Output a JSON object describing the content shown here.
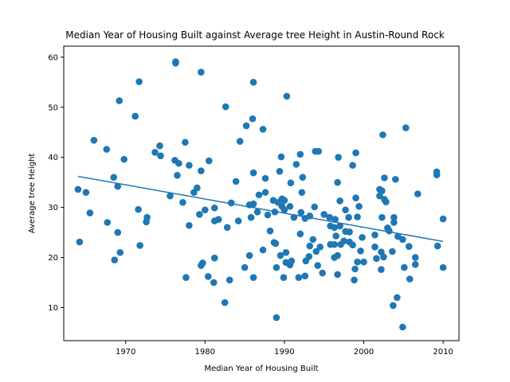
{
  "chart_data": {
    "type": "scatter",
    "title": "Median Year of Housing Built against Average tree Height in Austin-Round Rock",
    "xlabel": "Median Year of Housing Built",
    "ylabel": "Average tree Height",
    "xlim": [
      1962.2,
      2012.0
    ],
    "ylim": [
      3.4,
      62.2
    ],
    "xticks": [
      1970,
      1980,
      1990,
      2000,
      2010
    ],
    "yticks": [
      10,
      20,
      30,
      40,
      50,
      60
    ],
    "grid": false,
    "colors": {
      "points": "#1f77b4",
      "trendline": "#1f77b4"
    },
    "trendline": {
      "x": [
        1964,
        2010
      ],
      "y": [
        36.2,
        23.2
      ]
    },
    "points": [
      [
        1964.0,
        33.6
      ],
      [
        1964.2,
        23.1
      ],
      [
        1965.0,
        33.0
      ],
      [
        1965.5,
        28.9
      ],
      [
        1966.0,
        43.4
      ],
      [
        1967.6,
        41.6
      ],
      [
        1967.7,
        27.0
      ],
      [
        1968.5,
        36.0
      ],
      [
        1968.6,
        19.5
      ],
      [
        1969.0,
        34.2
      ],
      [
        1969.0,
        25.0
      ],
      [
        1969.2,
        51.3
      ],
      [
        1969.3,
        21.0
      ],
      [
        1969.8,
        39.6
      ],
      [
        1971.2,
        48.2
      ],
      [
        1971.7,
        55.1
      ],
      [
        1971.8,
        22.4
      ],
      [
        1971.6,
        29.6
      ],
      [
        1972.6,
        27.1
      ],
      [
        1972.7,
        28.0
      ],
      [
        1973.7,
        41.0
      ],
      [
        1974.3,
        42.3
      ],
      [
        1974.4,
        40.3
      ],
      [
        1975.6,
        32.3
      ],
      [
        1976.2,
        39.4
      ],
      [
        1976.3,
        58.8
      ],
      [
        1976.3,
        59.1
      ],
      [
        1976.5,
        36.4
      ],
      [
        1976.7,
        38.8
      ],
      [
        1977.2,
        31.0
      ],
      [
        1977.5,
        43.0
      ],
      [
        1977.6,
        16.0
      ],
      [
        1978.0,
        38.4
      ],
      [
        1978.0,
        26.4
      ],
      [
        1978.6,
        33.0
      ],
      [
        1979.0,
        33.9
      ],
      [
        1979.3,
        28.6
      ],
      [
        1979.5,
        37.3
      ],
      [
        1979.5,
        57.0
      ],
      [
        1979.5,
        18.4
      ],
      [
        1979.7,
        18.9
      ],
      [
        1980.0,
        29.5
      ],
      [
        1980.4,
        16.2
      ],
      [
        1980.5,
        39.3
      ],
      [
        1981.1,
        15.0
      ],
      [
        1981.2,
        27.3
      ],
      [
        1981.2,
        29.9
      ],
      [
        1981.2,
        19.9
      ],
      [
        1981.7,
        27.6
      ],
      [
        1982.5,
        11.0
      ],
      [
        1982.6,
        50.1
      ],
      [
        1982.8,
        26.0
      ],
      [
        1983.1,
        15.5
      ],
      [
        1983.3,
        30.9
      ],
      [
        1983.9,
        35.2
      ],
      [
        1984.2,
        27.3
      ],
      [
        1984.4,
        43.2
      ],
      [
        1985.0,
        18.0
      ],
      [
        1985.2,
        46.3
      ],
      [
        1985.6,
        30.5
      ],
      [
        1985.6,
        20.4
      ],
      [
        1985.8,
        28.0
      ],
      [
        1986.0,
        47.7
      ],
      [
        1986.1,
        55.0
      ],
      [
        1986.1,
        36.9
      ],
      [
        1986.1,
        30.7
      ],
      [
        1986.1,
        16.0
      ],
      [
        1986.6,
        29.1
      ],
      [
        1986.8,
        32.5
      ],
      [
        1987.3,
        45.6
      ],
      [
        1987.3,
        21.5
      ],
      [
        1987.6,
        33.0
      ],
      [
        1987.6,
        35.8
      ],
      [
        1987.9,
        28.5
      ],
      [
        1988.2,
        25.3
      ],
      [
        1988.6,
        31.4
      ],
      [
        1988.7,
        23.0
      ],
      [
        1988.8,
        29.1
      ],
      [
        1988.9,
        22.8
      ],
      [
        1989.0,
        8.0
      ],
      [
        1989.0,
        18.0
      ],
      [
        1989.2,
        31.0
      ],
      [
        1989.4,
        37.2
      ],
      [
        1989.5,
        20.4
      ],
      [
        1989.6,
        40.1
      ],
      [
        1989.7,
        31.7
      ],
      [
        1989.7,
        30.2
      ],
      [
        1989.9,
        16.0
      ],
      [
        1990.0,
        29.5
      ],
      [
        1990.0,
        31.4
      ],
      [
        1990.2,
        19.0
      ],
      [
        1990.2,
        21.0
      ],
      [
        1990.3,
        52.2
      ],
      [
        1990.7,
        18.5
      ],
      [
        1990.7,
        30.2
      ],
      [
        1990.8,
        34.9
      ],
      [
        1990.9,
        19.3
      ],
      [
        1991.2,
        28.0
      ],
      [
        1991.5,
        38.6
      ],
      [
        1991.8,
        16.0
      ],
      [
        1992.0,
        24.7
      ],
      [
        1992.0,
        40.6
      ],
      [
        1992.1,
        29.0
      ],
      [
        1992.2,
        33.0
      ],
      [
        1992.3,
        36.0
      ],
      [
        1992.6,
        16.3
      ],
      [
        1992.6,
        27.8
      ],
      [
        1992.7,
        19.3
      ],
      [
        1993.1,
        20.2
      ],
      [
        1993.2,
        28.3
      ],
      [
        1993.2,
        22.3
      ],
      [
        1993.6,
        23.6
      ],
      [
        1993.8,
        30.1
      ],
      [
        1993.9,
        41.2
      ],
      [
        1994.0,
        21.2
      ],
      [
        1994.3,
        41.2
      ],
      [
        1994.2,
        18.4
      ],
      [
        1994.5,
        22.1
      ],
      [
        1994.8,
        16.9
      ],
      [
        1995.0,
        28.6
      ],
      [
        1995.7,
        28.0
      ],
      [
        1995.8,
        26.3
      ],
      [
        1995.8,
        22.6
      ],
      [
        1996.3,
        26.0
      ],
      [
        1996.3,
        22.6
      ],
      [
        1996.3,
        20.0
      ],
      [
        1996.4,
        27.6
      ],
      [
        1996.5,
        24.3
      ],
      [
        1996.7,
        16.6
      ],
      [
        1996.7,
        20.4
      ],
      [
        1996.7,
        35.0
      ],
      [
        1996.8,
        40.0
      ],
      [
        1997.0,
        26.3
      ],
      [
        1997.0,
        31.3
      ],
      [
        1997.1,
        22.6
      ],
      [
        1997.5,
        23.3
      ],
      [
        1997.7,
        25.2
      ],
      [
        1997.7,
        29.5
      ],
      [
        1998.1,
        28.0
      ],
      [
        1998.2,
        25.1
      ],
      [
        1998.2,
        23.1
      ],
      [
        1998.6,
        38.4
      ],
      [
        1998.6,
        22.5
      ],
      [
        1998.8,
        15.5
      ],
      [
        1998.9,
        17.7
      ],
      [
        1999.0,
        31.9
      ],
      [
        1999.0,
        40.9
      ],
      [
        1999.2,
        19.1
      ],
      [
        1999.2,
        28.1
      ],
      [
        1999.4,
        30.2
      ],
      [
        1999.6,
        21.3
      ],
      [
        1999.8,
        24.0
      ],
      [
        2000.0,
        19.1
      ],
      [
        2001.4,
        24.5
      ],
      [
        2001.4,
        22.1
      ],
      [
        2001.6,
        19.8
      ],
      [
        2002.0,
        33.6
      ],
      [
        2002.0,
        32.3
      ],
      [
        2002.2,
        21.1
      ],
      [
        2002.2,
        17.6
      ],
      [
        2002.3,
        33.3
      ],
      [
        2002.3,
        28.0
      ],
      [
        2002.4,
        44.5
      ],
      [
        2002.5,
        20.1
      ],
      [
        2002.6,
        31.6
      ],
      [
        2002.6,
        35.9
      ],
      [
        2002.8,
        31.1
      ],
      [
        2003.0,
        25.9
      ],
      [
        2003.2,
        25.3
      ],
      [
        2003.6,
        21.2
      ],
      [
        2003.7,
        10.4
      ],
      [
        2003.8,
        27.0
      ],
      [
        2003.8,
        28.0
      ],
      [
        2004.0,
        35.6
      ],
      [
        2004.2,
        12.0
      ],
      [
        2004.3,
        24.2
      ],
      [
        2004.9,
        23.6
      ],
      [
        2004.9,
        6.1
      ],
      [
        2005.1,
        18.0
      ],
      [
        2005.3,
        45.9
      ],
      [
        2005.7,
        22.2
      ],
      [
        2005.8,
        15.7
      ],
      [
        2006.5,
        20.0
      ],
      [
        2006.5,
        18.6
      ],
      [
        2006.8,
        32.7
      ],
      [
        2009.2,
        36.5
      ],
      [
        2009.2,
        37.1
      ],
      [
        2009.3,
        22.3
      ],
      [
        2010.0,
        27.7
      ],
      [
        2010.0,
        18.0
      ]
    ]
  }
}
